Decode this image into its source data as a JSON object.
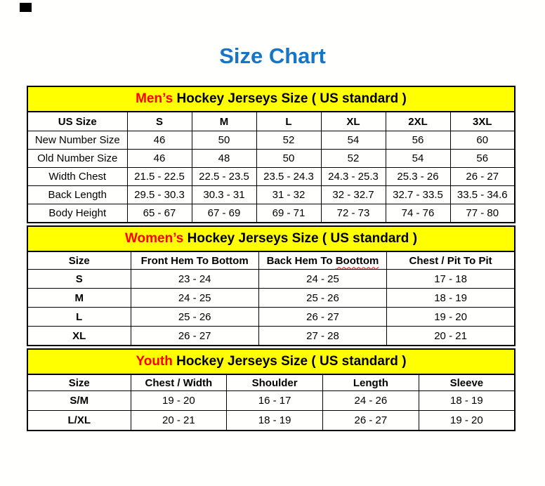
{
  "page": {
    "title": "Size Chart"
  },
  "colors": {
    "title_blue": "#1576C6",
    "banner_yellow": "#FFFF00",
    "accent_red": "#FF0000",
    "border_black": "#000000"
  },
  "sections": [
    {
      "id": "mens",
      "banner": {
        "highlight": "Men’s",
        "rest": " Hockey Jerseys Size ( US standard )"
      },
      "table": {
        "header": [
          "US Size",
          "S",
          "M",
          "L",
          "XL",
          "2XL",
          "3XL"
        ],
        "rows": [
          {
            "label": "New Number Size",
            "values": [
              "46",
              "50",
              "52",
              "54",
              "56",
              "60"
            ]
          },
          {
            "label": "Old Number Size",
            "values": [
              "46",
              "48",
              "50",
              "52",
              "54",
              "56"
            ]
          },
          {
            "label": "Width Chest",
            "values": [
              "21.5 - 22.5",
              "22.5 - 23.5",
              "23.5 - 24.3",
              "24.3 - 25.3",
              "25.3 - 26",
              "26 - 27"
            ]
          },
          {
            "label": "Back Length",
            "values": [
              "29.5 - 30.3",
              "30.3 - 31",
              "31 - 32",
              "32 - 32.7",
              "32.7 - 33.5",
              "33.5 - 34.6"
            ]
          },
          {
            "label": "Body Height",
            "values": [
              "65 - 67",
              "67 - 69",
              "69 - 71",
              "72 - 73",
              "74 - 76",
              "77 - 80"
            ]
          }
        ]
      }
    },
    {
      "id": "womens",
      "banner": {
        "highlight": "Women’s",
        "rest": " Hockey Jerseys Size ( US standard )"
      },
      "table": {
        "header": [
          "Size",
          "Front Hem To Bottom",
          "Back Hem To Boottom",
          "Chest / Pit To Pit"
        ],
        "squiggle": {
          "col": 2,
          "prefix": "Back Hem To ",
          "word": "Boottom"
        },
        "rows": [
          {
            "label": "S",
            "values": [
              "23 - 24",
              "24 - 25",
              "17 - 18"
            ]
          },
          {
            "label": "M",
            "values": [
              "24 - 25",
              "25 - 26",
              "18 - 19"
            ]
          },
          {
            "label": "L",
            "values": [
              "25 - 26",
              "26 - 27",
              "19 - 20"
            ]
          },
          {
            "label": "XL",
            "values": [
              "26 - 27",
              "27 - 28",
              "20 - 21"
            ]
          }
        ]
      }
    },
    {
      "id": "youth",
      "banner": {
        "highlight": "Youth",
        "rest": " Hockey Jerseys Size ( US standard )"
      },
      "table": {
        "header": [
          "Size",
          "Chest / Width",
          "Shoulder",
          "Length",
          "Sleeve"
        ],
        "rows": [
          {
            "label": "S/M",
            "values": [
              "19 - 20",
              "16 - 17",
              "24 - 26",
              "18 - 19"
            ]
          },
          {
            "label": "L/XL",
            "values": [
              "20 - 21",
              "18 - 19",
              "26 - 27",
              "19 - 20"
            ]
          }
        ]
      }
    }
  ]
}
